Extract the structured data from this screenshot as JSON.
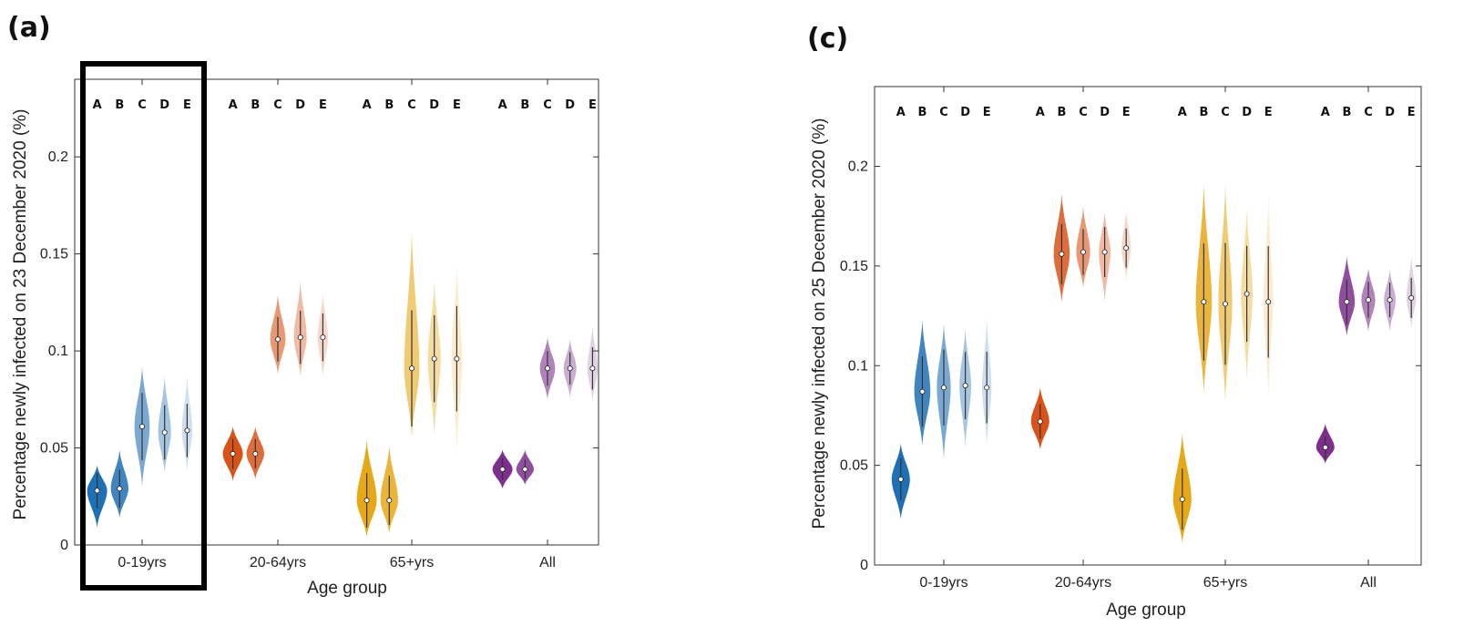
{
  "panels": [
    {
      "letter": "(a)",
      "ylabel": "Percentage newly infected on 23 December 2020 (%)",
      "xlabel": "Age group"
    },
    {
      "letter": "(c)",
      "ylabel": "Percentage newly infected on 25 December 2020 (%)",
      "xlabel": "Age group"
    }
  ],
  "chart_data": [
    {
      "type": "violin",
      "title": "",
      "xlabel": "Age group",
      "ylabel": "Percentage newly infected on 23 December 2020 (%)",
      "ylim": [
        0,
        0.24
      ],
      "yticks": [
        0,
        0.05,
        0.1,
        0.15,
        0.2
      ],
      "ytick_labels": [
        "0",
        "0.05",
        "0.1",
        "0.15",
        "0.2"
      ],
      "categories": [
        "0-19yrs",
        "20-64yrs",
        "65+yrs",
        "All"
      ],
      "scenarios": [
        "A",
        "B",
        "C",
        "D",
        "E"
      ],
      "highlight_group": "0-19yrs",
      "series": [
        {
          "group": "0-19yrs",
          "color": "#1f6fb5",
          "medians": [
            0.028,
            0.029,
            0.061,
            0.058,
            0.059
          ],
          "ranges": [
            [
              0.009,
              0.041
            ],
            [
              0.014,
              0.049
            ],
            [
              0.03,
              0.092
            ],
            [
              0.037,
              0.087
            ],
            [
              0.038,
              0.087
            ]
          ]
        },
        {
          "group": "20-64yrs",
          "color": "#d95319",
          "medians": [
            0.047,
            0.047,
            0.106,
            0.107,
            0.107
          ],
          "ranges": [
            [
              0.033,
              0.061
            ],
            [
              0.034,
              0.061
            ],
            [
              0.088,
              0.129
            ],
            [
              0.087,
              0.136
            ],
            [
              0.086,
              0.13
            ]
          ]
        },
        {
          "group": "65+yrs",
          "color": "#e6a817",
          "medians": [
            0.023,
            0.023,
            0.091,
            0.096,
            0.096
          ],
          "ranges": [
            [
              0.004,
              0.054
            ],
            [
              0.006,
              0.051
            ],
            [
              0.055,
              0.162
            ],
            [
              0.056,
              0.136
            ],
            [
              0.048,
              0.145
            ]
          ]
        },
        {
          "group": "All",
          "color": "#7e2f8e",
          "medians": [
            0.039,
            0.039,
            0.091,
            0.091,
            0.091
          ],
          "ranges": [
            [
              0.029,
              0.049
            ],
            [
              0.031,
              0.049
            ],
            [
              0.075,
              0.107
            ],
            [
              0.076,
              0.106
            ],
            [
              0.074,
              0.113
            ]
          ]
        }
      ]
    },
    {
      "type": "violin",
      "title": "",
      "xlabel": "Age group",
      "ylabel": "Percentage newly infected on 25 December 2020 (%)",
      "ylim": [
        0,
        0.24
      ],
      "yticks": [
        0,
        0.05,
        0.1,
        0.15,
        0.2
      ],
      "ytick_labels": [
        "0",
        "0.05",
        "0.1",
        "0.15",
        "0.2"
      ],
      "categories": [
        "0-19yrs",
        "20-64yrs",
        "65+yrs",
        "All"
      ],
      "scenarios": [
        "A",
        "B",
        "C",
        "D",
        "E"
      ],
      "series": [
        {
          "group": "0-19yrs",
          "color": "#1f6fb5",
          "medians": [
            0.043,
            0.087,
            0.089,
            0.09,
            0.089
          ],
          "ranges": [
            [
              0.023,
              0.061
            ],
            [
              0.06,
              0.123
            ],
            [
              0.053,
              0.121
            ],
            [
              0.059,
              0.119
            ],
            [
              0.06,
              0.124
            ]
          ]
        },
        {
          "group": "20-64yrs",
          "color": "#d95319",
          "medians": [
            0.072,
            0.156,
            0.157,
            0.157,
            0.159
          ],
          "ranges": [
            [
              0.058,
              0.089
            ],
            [
              0.132,
              0.186
            ],
            [
              0.139,
              0.18
            ],
            [
              0.132,
              0.177
            ],
            [
              0.143,
              0.178
            ]
          ]
        },
        {
          "group": "65+yrs",
          "color": "#e6a817",
          "medians": [
            0.033,
            0.132,
            0.131,
            0.136,
            0.132
          ],
          "ranges": [
            [
              0.011,
              0.066
            ],
            [
              0.086,
              0.191
            ],
            [
              0.082,
              0.191
            ],
            [
              0.093,
              0.179
            ],
            [
              0.085,
              0.185
            ]
          ]
        },
        {
          "group": "All",
          "color": "#7e2f8e",
          "medians": [
            0.059,
            0.132,
            0.133,
            0.133,
            0.134
          ],
          "ranges": [
            [
              0.051,
              0.071
            ],
            [
              0.115,
              0.155
            ],
            [
              0.117,
              0.149
            ],
            [
              0.117,
              0.148
            ],
            [
              0.119,
              0.155
            ]
          ]
        }
      ]
    }
  ]
}
